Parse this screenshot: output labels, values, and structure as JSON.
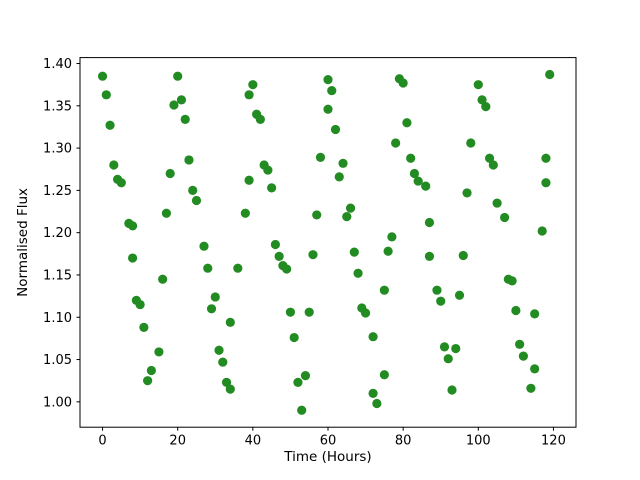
{
  "figure": {
    "background": "#ffffff",
    "axes_edge_color": "#000000"
  },
  "chart_data": {
    "type": "scatter",
    "title": "",
    "xlabel": "Time (Hours)",
    "ylabel": "Normalised Flux",
    "legend": null,
    "grid": false,
    "marker": "circle",
    "marker_color": "#228B22",
    "xlim": [
      -6,
      126
    ],
    "ylim": [
      0.97,
      1.407
    ],
    "x_ticks": [
      0,
      20,
      40,
      60,
      80,
      100,
      120
    ],
    "y_ticks": [
      1.0,
      1.05,
      1.1,
      1.15,
      1.2,
      1.25,
      1.3,
      1.35,
      1.4
    ],
    "points": [
      [
        0,
        1.385
      ],
      [
        1,
        1.363
      ],
      [
        2,
        1.327
      ],
      [
        3,
        1.28
      ],
      [
        4,
        1.263
      ],
      [
        5,
        1.259
      ],
      [
        7,
        1.211
      ],
      [
        8,
        1.208
      ],
      [
        8,
        1.17
      ],
      [
        9,
        1.12
      ],
      [
        10,
        1.115
      ],
      [
        11,
        1.088
      ],
      [
        12,
        1.025
      ],
      [
        13,
        1.037
      ],
      [
        15,
        1.059
      ],
      [
        16,
        1.145
      ],
      [
        17,
        1.223
      ],
      [
        18,
        1.27
      ],
      [
        19,
        1.351
      ],
      [
        20,
        1.385
      ],
      [
        21,
        1.357
      ],
      [
        22,
        1.334
      ],
      [
        23,
        1.286
      ],
      [
        24,
        1.25
      ],
      [
        25,
        1.238
      ],
      [
        27,
        1.184
      ],
      [
        28,
        1.158
      ],
      [
        29,
        1.11
      ],
      [
        30,
        1.124
      ],
      [
        31,
        1.061
      ],
      [
        32,
        1.047
      ],
      [
        33,
        1.023
      ],
      [
        34,
        1.015
      ],
      [
        34,
        1.094
      ],
      [
        36,
        1.158
      ],
      [
        38,
        1.223
      ],
      [
        39,
        1.262
      ],
      [
        39,
        1.363
      ],
      [
        40,
        1.375
      ],
      [
        41,
        1.34
      ],
      [
        42,
        1.334
      ],
      [
        43,
        1.28
      ],
      [
        44,
        1.274
      ],
      [
        45,
        1.253
      ],
      [
        46,
        1.186
      ],
      [
        47,
        1.172
      ],
      [
        48,
        1.161
      ],
      [
        49,
        1.157
      ],
      [
        50,
        1.106
      ],
      [
        51,
        1.076
      ],
      [
        52,
        1.023
      ],
      [
        53,
        0.99
      ],
      [
        54,
        1.031
      ],
      [
        55,
        1.106
      ],
      [
        56,
        1.174
      ],
      [
        57,
        1.221
      ],
      [
        58,
        1.289
      ],
      [
        60,
        1.381
      ],
      [
        60,
        1.346
      ],
      [
        61,
        1.368
      ],
      [
        62,
        1.322
      ],
      [
        63,
        1.266
      ],
      [
        64,
        1.282
      ],
      [
        65,
        1.219
      ],
      [
        66,
        1.229
      ],
      [
        67,
        1.177
      ],
      [
        68,
        1.152
      ],
      [
        69,
        1.111
      ],
      [
        70,
        1.105
      ],
      [
        72,
        1.077
      ],
      [
        72,
        1.01
      ],
      [
        73,
        0.998
      ],
      [
        75,
        1.032
      ],
      [
        75,
        1.132
      ],
      [
        76,
        1.178
      ],
      [
        77,
        1.195
      ],
      [
        78,
        1.306
      ],
      [
        79,
        1.382
      ],
      [
        80,
        1.377
      ],
      [
        81,
        1.33
      ],
      [
        82,
        1.288
      ],
      [
        83,
        1.27
      ],
      [
        84,
        1.261
      ],
      [
        86,
        1.255
      ],
      [
        87,
        1.212
      ],
      [
        87,
        1.172
      ],
      [
        89,
        1.132
      ],
      [
        90,
        1.119
      ],
      [
        91,
        1.065
      ],
      [
        92,
        1.051
      ],
      [
        93,
        1.014
      ],
      [
        94,
        1.063
      ],
      [
        95,
        1.126
      ],
      [
        96,
        1.173
      ],
      [
        97,
        1.247
      ],
      [
        98,
        1.306
      ],
      [
        100,
        1.375
      ],
      [
        101,
        1.357
      ],
      [
        102,
        1.349
      ],
      [
        103,
        1.288
      ],
      [
        104,
        1.28
      ],
      [
        105,
        1.235
      ],
      [
        107,
        1.218
      ],
      [
        108,
        1.145
      ],
      [
        109,
        1.143
      ],
      [
        110,
        1.108
      ],
      [
        111,
        1.068
      ],
      [
        112,
        1.054
      ],
      [
        114,
        1.016
      ],
      [
        115,
        1.039
      ],
      [
        115,
        1.104
      ],
      [
        117,
        1.202
      ],
      [
        118,
        1.288
      ],
      [
        118,
        1.259
      ],
      [
        119,
        1.387
      ]
    ]
  }
}
